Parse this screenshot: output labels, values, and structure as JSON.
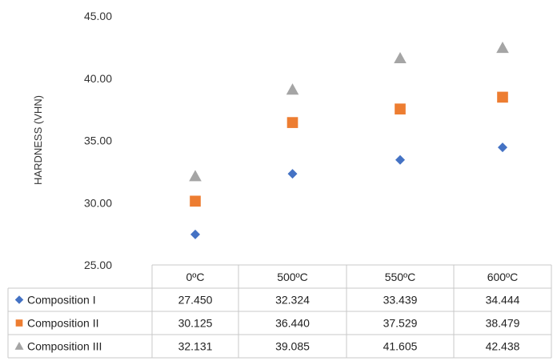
{
  "chart_data": {
    "type": "scatter",
    "ylabel": "HARDNESS (VHN)",
    "ylim": [
      25,
      45
    ],
    "y_ticks": [
      "45.00",
      "40.00",
      "35.00",
      "30.00",
      "25.00"
    ],
    "categories": [
      "0ºC",
      "500ºC",
      "550ºC",
      "600ºC"
    ],
    "series": [
      {
        "name": "Composition I",
        "marker": "diamond",
        "color": "#4472C4",
        "values": [
          27.45,
          32.324,
          33.439,
          34.444
        ],
        "labels": [
          "27.450",
          "32.324",
          "33.439",
          "34.444"
        ]
      },
      {
        "name": "Composition II",
        "marker": "square",
        "color": "#ED7D31",
        "values": [
          30.125,
          36.44,
          37.529,
          38.479
        ],
        "labels": [
          "30.125",
          "36.440",
          "37.529",
          "38.479"
        ]
      },
      {
        "name": "Composition III",
        "marker": "triangle",
        "color": "#A5A5A5",
        "values": [
          32.131,
          39.085,
          41.605,
          42.438
        ],
        "labels": [
          "32.131",
          "39.085",
          "41.605",
          "42.438"
        ]
      }
    ],
    "gridlines": false,
    "data_table": true
  }
}
